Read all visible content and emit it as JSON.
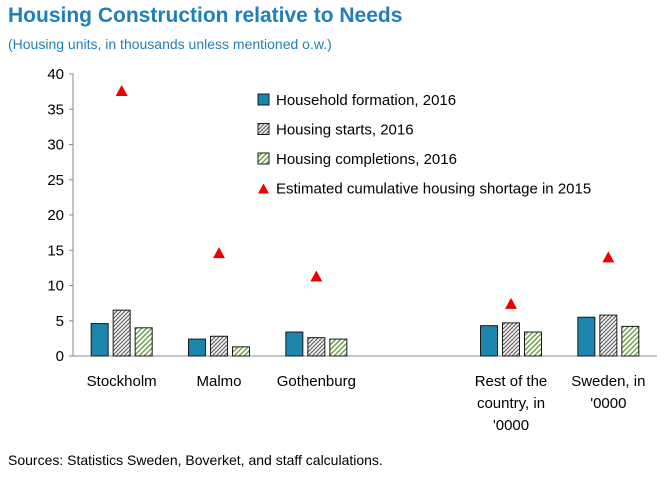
{
  "chart_data": {
    "type": "bar",
    "title": "Housing Construction relative to Needs",
    "subtitle": "(Housing units, in thousands unless mentioned o.w.)",
    "categories": [
      [
        "Stockholm"
      ],
      [
        "Malmo"
      ],
      [
        "Gothenburg"
      ],
      [
        ""
      ],
      [
        "Rest of the",
        "country, in",
        "'0000"
      ],
      [
        "Sweden, in",
        "'0000"
      ]
    ],
    "series": [
      {
        "name": "Household formation, 2016",
        "kind": "bar",
        "pattern": "solid",
        "color": "#1a86ad",
        "values": [
          4.6,
          2.4,
          3.4,
          null,
          4.3,
          5.5
        ]
      },
      {
        "name": "Housing starts, 2016",
        "kind": "bar",
        "pattern": "crosshatch",
        "color": "#666666",
        "values": [
          6.5,
          2.8,
          2.6,
          null,
          4.7,
          5.8
        ]
      },
      {
        "name": "Housing completions, 2016",
        "kind": "bar",
        "pattern": "diagonal",
        "color": "#6ca04a",
        "values": [
          4.0,
          1.3,
          2.4,
          null,
          3.4,
          4.2
        ]
      },
      {
        "name": "Estimated cumulative housing shortage in 2015",
        "kind": "marker",
        "marker": "triangle",
        "color": "#ee0000",
        "values": [
          37.5,
          14.5,
          11.2,
          null,
          7.3,
          13.9
        ]
      }
    ],
    "ylim": [
      0,
      40
    ],
    "yticks": [
      0,
      5,
      10,
      15,
      20,
      25,
      30,
      35,
      40
    ],
    "xlabel": "",
    "ylabel": "",
    "grid": false,
    "legend": "top-right",
    "source": "Sources: Statistics Sweden, Boverket, and staff calculations."
  }
}
